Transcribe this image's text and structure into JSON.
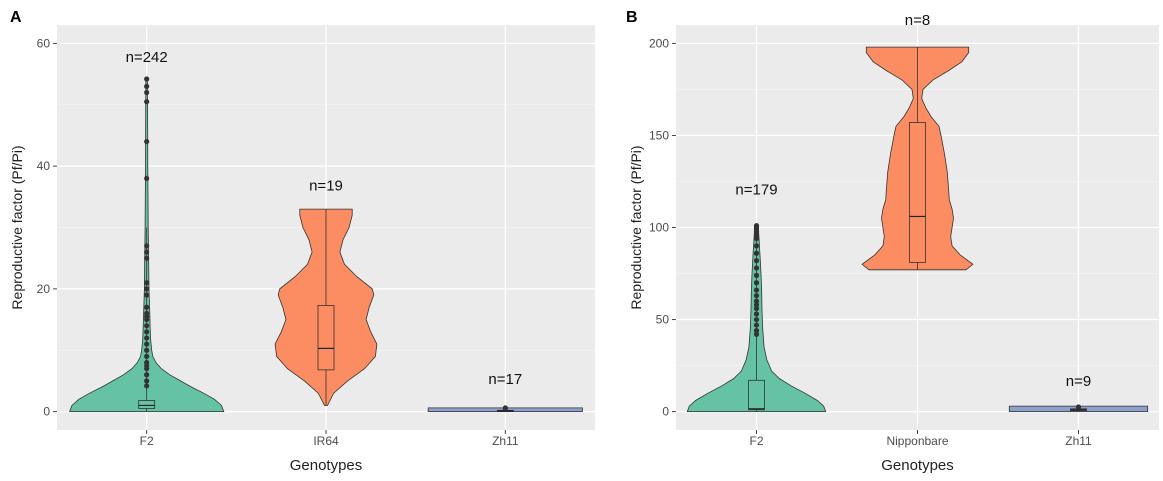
{
  "chart_data": [
    {
      "type": "violin",
      "panel_label": "A",
      "xlabel": "Genotypes",
      "ylabel": "Reproductive factor (Pf/Pi)",
      "ylim": [
        -3,
        63
      ],
      "yticks": [
        0,
        20,
        40,
        60
      ],
      "grid": true,
      "categories": [
        "F2",
        "IR64",
        "Zh11"
      ],
      "sample_labels": [
        "n=242",
        "n=19",
        "n=17"
      ],
      "label_y": [
        57,
        36,
        4.5
      ],
      "colors": [
        "#66c2a5",
        "#fc8d62",
        "#8da0cb"
      ],
      "violins": [
        {
          "min": 0,
          "max": 54,
          "profile": [
            [
              0,
              1
            ],
            [
              1,
              0.97
            ],
            [
              2,
              0.88
            ],
            [
              3,
              0.74
            ],
            [
              4,
              0.58
            ],
            [
              5,
              0.44
            ],
            [
              6,
              0.3
            ],
            [
              7,
              0.19
            ],
            [
              8,
              0.12
            ],
            [
              9,
              0.08
            ],
            [
              10,
              0.065
            ],
            [
              12,
              0.05
            ],
            [
              14,
              0.045
            ],
            [
              16,
              0.04
            ],
            [
              18,
              0.035
            ],
            [
              20,
              0.03
            ],
            [
              25,
              0.025
            ],
            [
              30,
              0.02
            ],
            [
              40,
              0.015
            ],
            [
              50,
              0.012
            ],
            [
              54,
              0.01
            ]
          ]
        },
        {
          "min": 1,
          "max": 33,
          "profile": [
            [
              1,
              0.02
            ],
            [
              3,
              0.1
            ],
            [
              5,
              0.28
            ],
            [
              7,
              0.5
            ],
            [
              9,
              0.64
            ],
            [
              11,
              0.66
            ],
            [
              13,
              0.58
            ],
            [
              15,
              0.52
            ],
            [
              17,
              0.56
            ],
            [
              19,
              0.62
            ],
            [
              20,
              0.6
            ],
            [
              22,
              0.4
            ],
            [
              24,
              0.24
            ],
            [
              26,
              0.18
            ],
            [
              28,
              0.22
            ],
            [
              30,
              0.3
            ],
            [
              32,
              0.34
            ],
            [
              33,
              0.34
            ]
          ]
        },
        {
          "min": 0,
          "max": 0.6,
          "profile": [
            [
              0,
              1
            ],
            [
              0.3,
              1
            ],
            [
              0.6,
              1
            ]
          ]
        }
      ],
      "boxes": [
        {
          "q1": 0.5,
          "median": 1.0,
          "q3": 1.8,
          "whisker_low": 0,
          "whisker_high": 30
        },
        {
          "q1": 6.8,
          "median": 10.3,
          "q3": 17.3,
          "whisker_low": 1,
          "whisker_high": 33
        },
        {
          "q1": 0.05,
          "median": 0.1,
          "q3": 0.2,
          "whisker_low": 0,
          "whisker_high": 0.4
        }
      ],
      "outliers": [
        [
          54.2,
          53,
          52,
          50.5,
          44,
          38,
          27,
          26,
          25,
          21,
          20,
          19,
          17,
          16,
          15.5,
          15,
          14,
          13,
          12,
          11,
          10,
          9,
          8,
          7.5,
          7,
          6,
          5,
          4.2
        ],
        [],
        [
          0.6,
          0.5
        ]
      ]
    },
    {
      "type": "violin",
      "panel_label": "B",
      "xlabel": "Genotypes",
      "ylabel": "Reproductive factor (Pf/Pi)",
      "ylim": [
        -10,
        210
      ],
      "yticks": [
        0,
        50,
        100,
        150,
        200
      ],
      "grid": true,
      "categories": [
        "F2",
        "Nipponbare",
        "Zh11"
      ],
      "sample_labels": [
        "n=179",
        "n=8",
        "n=9"
      ],
      "label_y": [
        118,
        210,
        14
      ],
      "colors": [
        "#66c2a5",
        "#fc8d62",
        "#8da0cb"
      ],
      "violins": [
        {
          "min": 0,
          "max": 101,
          "profile": [
            [
              0,
              1
            ],
            [
              3,
              0.97
            ],
            [
              6,
              0.88
            ],
            [
              10,
              0.7
            ],
            [
              14,
              0.5
            ],
            [
              18,
              0.33
            ],
            [
              22,
              0.22
            ],
            [
              28,
              0.15
            ],
            [
              35,
              0.11
            ],
            [
              45,
              0.09
            ],
            [
              55,
              0.08
            ],
            [
              65,
              0.075
            ],
            [
              75,
              0.065
            ],
            [
              85,
              0.05
            ],
            [
              95,
              0.035
            ],
            [
              101,
              0.025
            ]
          ]
        },
        {
          "min": 77,
          "max": 198,
          "profile": [
            [
              77,
              0.7
            ],
            [
              80,
              0.8
            ],
            [
              85,
              0.62
            ],
            [
              90,
              0.5
            ],
            [
              95,
              0.48
            ],
            [
              100,
              0.5
            ],
            [
              105,
              0.52
            ],
            [
              110,
              0.5
            ],
            [
              115,
              0.46
            ],
            [
              120,
              0.45
            ],
            [
              130,
              0.43
            ],
            [
              140,
              0.39
            ],
            [
              150,
              0.34
            ],
            [
              155,
              0.31
            ],
            [
              160,
              0.2
            ],
            [
              165,
              0.12
            ],
            [
              170,
              0.06
            ],
            [
              175,
              0.08
            ],
            [
              180,
              0.22
            ],
            [
              185,
              0.44
            ],
            [
              190,
              0.64
            ],
            [
              195,
              0.74
            ],
            [
              198,
              0.74
            ]
          ]
        },
        {
          "min": 0,
          "max": 3,
          "profile": [
            [
              0,
              1
            ],
            [
              1.5,
              1
            ],
            [
              3,
              1
            ]
          ]
        }
      ],
      "boxes": [
        {
          "q1": 1,
          "median": 1.5,
          "q3": 17,
          "whisker_low": 0,
          "whisker_high": 95
        },
        {
          "q1": 81,
          "median": 106,
          "q3": 157,
          "whisker_low": 77,
          "whisker_high": 198
        },
        {
          "q1": 0.5,
          "median": 1,
          "q3": 1.5,
          "whisker_low": 0,
          "whisker_high": 2
        }
      ],
      "outliers": [
        [
          101,
          100,
          99,
          98,
          96,
          94,
          90,
          86,
          82,
          78,
          74,
          70,
          66,
          63,
          60,
          58,
          56,
          53,
          50,
          47,
          44,
          42
        ],
        [],
        [
          2.5
        ]
      ]
    }
  ]
}
